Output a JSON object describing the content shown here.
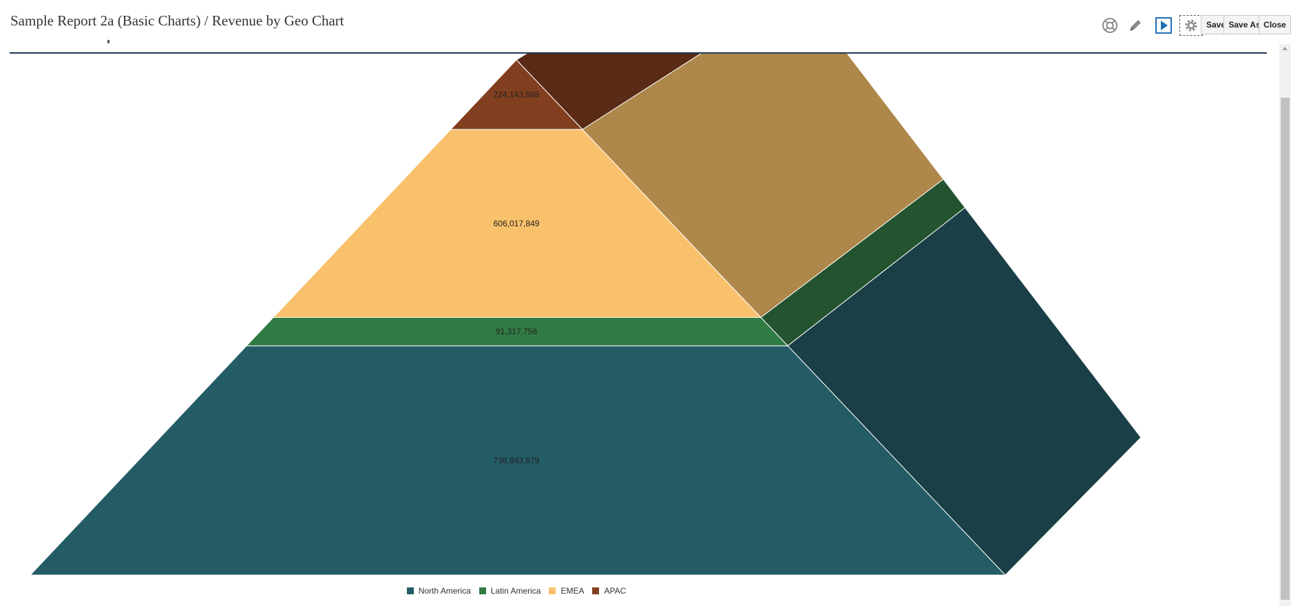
{
  "header": {
    "title": "Sample Report 2a (Basic Charts) / Revenue by Geo Chart"
  },
  "toolbar": {
    "icons": [
      "help-icon",
      "edit-icon",
      "run-icon",
      "settings-icon"
    ],
    "save_label": "Save",
    "save_as_label": "Save As",
    "close_label": "Close"
  },
  "chart_data": {
    "type": "pyramid",
    "series": [
      {
        "name": "North America",
        "value": 738843679,
        "label": "738,843,679",
        "color": "#245c66",
        "side_color": "#1a3f46"
      },
      {
        "name": "Latin America",
        "value": 91317758,
        "label": "91,317,758",
        "color": "#317b44",
        "side_color": "#24532f"
      },
      {
        "name": "EMEA",
        "value": 606017849,
        "label": "606,017,849",
        "color": "#f9c16b",
        "side_color": "#ae874a"
      },
      {
        "name": "APAC",
        "value": 224143588,
        "label": "224,143,588",
        "color": "#823f20",
        "side_color": "#592a16"
      }
    ],
    "legend_position": "bottom"
  }
}
